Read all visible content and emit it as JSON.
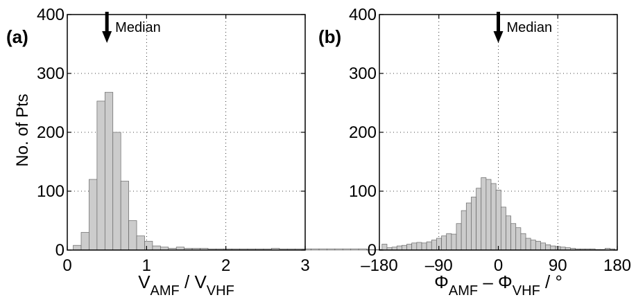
{
  "ylabel": "No. of Pts",
  "median_label": "Median",
  "chart_data": [
    {
      "type": "bar",
      "panel_label": "(a)",
      "xlabel": {
        "base1": "V",
        "sub1": "AMF",
        "sep": " / ",
        "base2": "V",
        "sub2": "VHF",
        "tail": ""
      },
      "xlim": [
        0,
        3
      ],
      "ylim": [
        0,
        400
      ],
      "xticks": [
        0,
        1,
        2,
        3
      ],
      "xtick_labels": [
        "0",
        "1",
        "2",
        "3"
      ],
      "yticks": [
        0,
        100,
        200,
        300,
        400
      ],
      "ytick_labels": [
        "0",
        "100",
        "200",
        "300",
        "400"
      ],
      "grid": true,
      "bin_start": 0.075,
      "bin_width": 0.1,
      "values": [
        8,
        30,
        120,
        253,
        268,
        200,
        117,
        50,
        24,
        15,
        7,
        5,
        3,
        5,
        3,
        3,
        3,
        2,
        2,
        2,
        2,
        2,
        2,
        2,
        2,
        3,
        2,
        2,
        2,
        2,
        2,
        2,
        2,
        2,
        2,
        2,
        2,
        1,
        1,
        1,
        1,
        1,
        1
      ],
      "median": 0.5
    },
    {
      "type": "bar",
      "panel_label": "(b)",
      "xlabel": {
        "base1": "Φ",
        "sub1": "AMF",
        "sep": " – ",
        "base2": "Φ",
        "sub2": "VHF",
        "tail": " / °"
      },
      "xlim": [
        -180,
        180
      ],
      "ylim": [
        0,
        400
      ],
      "xticks": [
        -180,
        -90,
        0,
        90,
        180
      ],
      "xtick_labels": [
        "–180",
        "–90",
        "0",
        "90",
        "180"
      ],
      "yticks": [
        0,
        100,
        200,
        300,
        400
      ],
      "ytick_labels": [
        "0",
        "100",
        "200",
        "300",
        "400"
      ],
      "grid": true,
      "bin_start": -176,
      "bin_width": 7.5,
      "values": [
        10,
        4,
        5,
        7,
        8,
        10,
        12,
        13,
        12,
        14,
        17,
        20,
        24,
        28,
        27,
        45,
        67,
        80,
        90,
        105,
        123,
        120,
        113,
        102,
        73,
        58,
        45,
        38,
        28,
        20,
        17,
        15,
        12,
        9,
        7,
        6,
        5,
        4,
        3,
        2,
        2,
        2,
        2,
        1,
        1,
        3,
        2
      ],
      "median": 0
    }
  ]
}
